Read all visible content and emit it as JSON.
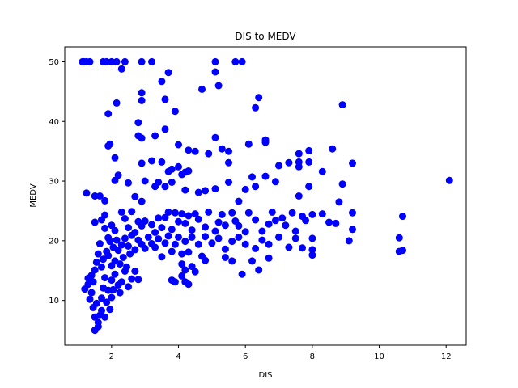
{
  "chart_data": {
    "type": "scatter",
    "title": "DIS to MEDV",
    "xlabel": "DIS",
    "ylabel": "MEDV",
    "xlim": [
      0.6,
      12.6
    ],
    "ylim": [
      2.5,
      52.5
    ],
    "xticks": [
      2,
      4,
      6,
      8,
      10,
      12
    ],
    "yticks": [
      10,
      20,
      30,
      40,
      50
    ],
    "grid": false,
    "marker_color": "#0000ff",
    "points": [
      [
        1.13,
        50
      ],
      [
        1.17,
        50
      ],
      [
        1.25,
        50
      ],
      [
        1.35,
        50
      ],
      [
        1.75,
        50
      ],
      [
        1.85,
        50
      ],
      [
        2.0,
        50
      ],
      [
        2.15,
        50
      ],
      [
        2.4,
        50
      ],
      [
        2.9,
        50
      ],
      [
        3.2,
        50
      ],
      [
        5.1,
        50
      ],
      [
        5.7,
        50
      ],
      [
        5.9,
        50
      ],
      [
        2.3,
        48.8
      ],
      [
        5.1,
        48.3
      ],
      [
        3.7,
        48.2
      ],
      [
        3.5,
        46.7
      ],
      [
        5.2,
        46
      ],
      [
        4.7,
        45.4
      ],
      [
        2.9,
        44.8
      ],
      [
        6.4,
        44
      ],
      [
        2.9,
        43.5
      ],
      [
        3.6,
        43.7
      ],
      [
        2.15,
        43.1
      ],
      [
        8.9,
        42.8
      ],
      [
        6.3,
        42.3
      ],
      [
        3.9,
        41.7
      ],
      [
        1.9,
        41.3
      ],
      [
        2.8,
        39.8
      ],
      [
        1.95,
        36.2
      ],
      [
        1.9,
        35.9
      ],
      [
        2.8,
        37.6
      ],
      [
        2.9,
        37.2
      ],
      [
        3.3,
        37.6
      ],
      [
        3.6,
        38.7
      ],
      [
        4.0,
        36.1
      ],
      [
        4.3,
        35.2
      ],
      [
        4.5,
        35
      ],
      [
        5.1,
        37.3
      ],
      [
        5.3,
        35.4
      ],
      [
        5.5,
        35
      ],
      [
        6.1,
        36.2
      ],
      [
        6.6,
        36.5
      ],
      [
        6.6,
        36.9
      ],
      [
        7.6,
        34.6
      ],
      [
        7.9,
        35.1
      ],
      [
        8.6,
        35.4
      ],
      [
        2.1,
        33.9
      ],
      [
        2.9,
        33
      ],
      [
        3.2,
        33.4
      ],
      [
        3.5,
        33.2
      ],
      [
        3.8,
        32
      ],
      [
        4.0,
        32.4
      ],
      [
        4.2,
        31.5
      ],
      [
        4.9,
        34.6
      ],
      [
        5.5,
        33.1
      ],
      [
        7.0,
        32.6
      ],
      [
        7.3,
        33.1
      ],
      [
        7.6,
        33.2
      ],
      [
        7.6,
        32.4
      ],
      [
        7.9,
        33.2
      ],
      [
        8.3,
        31.6
      ],
      [
        9.2,
        33
      ],
      [
        1.25,
        28
      ],
      [
        1.5,
        27.5
      ],
      [
        1.65,
        27.5
      ],
      [
        1.8,
        26.7
      ],
      [
        2.1,
        30.1
      ],
      [
        2.2,
        31
      ],
      [
        2.5,
        29.7
      ],
      [
        2.7,
        27.4
      ],
      [
        2.9,
        26.6
      ],
      [
        3.0,
        30
      ],
      [
        3.3,
        29.1
      ],
      [
        3.4,
        29.8
      ],
      [
        3.6,
        29.1
      ],
      [
        3.7,
        31.6
      ],
      [
        3.8,
        29.8
      ],
      [
        4.1,
        31.1
      ],
      [
        4.3,
        31.7
      ],
      [
        4.2,
        28.5
      ],
      [
        4.6,
        28.1
      ],
      [
        4.8,
        28.4
      ],
      [
        5.1,
        28.7
      ],
      [
        5.5,
        29.8
      ],
      [
        5.8,
        26.6
      ],
      [
        6.0,
        28.6
      ],
      [
        6.2,
        30.7
      ],
      [
        6.3,
        29.1
      ],
      [
        6.6,
        30.8
      ],
      [
        6.9,
        29.9
      ],
      [
        7.6,
        27.5
      ],
      [
        7.9,
        29.1
      ],
      [
        8.8,
        26.5
      ],
      [
        8.9,
        29.5
      ],
      [
        12.1,
        30.1
      ],
      [
        10.7,
        24.1
      ],
      [
        9.2,
        24.7
      ],
      [
        1.5,
        23.1
      ],
      [
        1.7,
        23.5
      ],
      [
        1.8,
        24.3
      ],
      [
        1.8,
        22.1
      ],
      [
        1.9,
        20.5
      ],
      [
        2.0,
        22.6
      ],
      [
        2.1,
        21.7
      ],
      [
        2.3,
        24.8
      ],
      [
        2.4,
        23.7
      ],
      [
        2.5,
        22.2
      ],
      [
        2.6,
        24.9
      ],
      [
        2.7,
        21.4
      ],
      [
        2.8,
        23.2
      ],
      [
        2.9,
        22.5
      ],
      [
        3.0,
        23.3
      ],
      [
        3.2,
        22.7
      ],
      [
        3.3,
        21.4
      ],
      [
        3.4,
        23.8
      ],
      [
        3.5,
        22.2
      ],
      [
        3.6,
        23.9
      ],
      [
        3.7,
        24.8
      ],
      [
        3.8,
        21.9
      ],
      [
        3.9,
        24.7
      ],
      [
        4.0,
        23.2
      ],
      [
        4.1,
        24.5
      ],
      [
        4.2,
        22.9
      ],
      [
        4.3,
        24.2
      ],
      [
        4.4,
        21.8
      ],
      [
        4.5,
        24.5
      ],
      [
        4.6,
        23.6
      ],
      [
        4.8,
        22.3
      ],
      [
        4.9,
        24.8
      ],
      [
        5.1,
        21.6
      ],
      [
        5.2,
        23.1
      ],
      [
        5.3,
        24.4
      ],
      [
        5.4,
        22.6
      ],
      [
        5.6,
        24.7
      ],
      [
        5.7,
        23.3
      ],
      [
        5.8,
        22.5
      ],
      [
        6.0,
        21.5
      ],
      [
        6.1,
        24.7
      ],
      [
        6.3,
        23.5
      ],
      [
        6.5,
        21.6
      ],
      [
        6.7,
        22.8
      ],
      [
        6.8,
        24.8
      ],
      [
        6.9,
        23.4
      ],
      [
        7.1,
        23.8
      ],
      [
        7.2,
        22.6
      ],
      [
        7.4,
        24.7
      ],
      [
        7.5,
        21.6
      ],
      [
        7.7,
        24.1
      ],
      [
        7.8,
        23.4
      ],
      [
        8.0,
        24.4
      ],
      [
        8.3,
        24.5
      ],
      [
        8.5,
        23.1
      ],
      [
        8.7,
        22.9
      ],
      [
        9.1,
        20
      ],
      [
        9.2,
        21.9
      ],
      [
        10.6,
        20.5
      ],
      [
        1.3,
        13.7
      ],
      [
        1.4,
        14.2
      ],
      [
        1.45,
        13.1
      ],
      [
        1.5,
        15.1
      ],
      [
        1.55,
        16.4
      ],
      [
        1.6,
        17.8
      ],
      [
        1.65,
        19.5
      ],
      [
        1.7,
        15.6
      ],
      [
        1.75,
        16.9
      ],
      [
        1.8,
        13.8
      ],
      [
        1.85,
        18.2
      ],
      [
        1.9,
        17.5
      ],
      [
        1.95,
        19.9
      ],
      [
        2.0,
        15.8
      ],
      [
        2.05,
        18.9
      ],
      [
        2.1,
        16.6
      ],
      [
        2.15,
        20.1
      ],
      [
        2.2,
        18.4
      ],
      [
        2.25,
        16.1
      ],
      [
        2.3,
        19.3
      ],
      [
        2.35,
        17.2
      ],
      [
        2.4,
        20.4
      ],
      [
        2.45,
        15.6
      ],
      [
        2.5,
        19.1
      ],
      [
        2.55,
        17.8
      ],
      [
        2.6,
        20.9
      ],
      [
        2.7,
        18.5
      ],
      [
        2.8,
        20.1
      ],
      [
        2.9,
        19.4
      ],
      [
        3.0,
        18.7
      ],
      [
        3.1,
        20.6
      ],
      [
        3.2,
        19.5
      ],
      [
        3.3,
        18.9
      ],
      [
        3.4,
        20.3
      ],
      [
        3.5,
        17.3
      ],
      [
        3.6,
        19.6
      ],
      [
        3.7,
        20.8
      ],
      [
        3.8,
        18.2
      ],
      [
        3.9,
        19.4
      ],
      [
        4.0,
        20.6
      ],
      [
        4.1,
        17.8
      ],
      [
        4.2,
        19.9
      ],
      [
        4.3,
        18.1
      ],
      [
        4.4,
        20.6
      ],
      [
        4.6,
        19.4
      ],
      [
        4.7,
        17.4
      ],
      [
        4.8,
        20.7
      ],
      [
        5.0,
        19.6
      ],
      [
        5.2,
        20.4
      ],
      [
        5.4,
        18.6
      ],
      [
        5.6,
        19.9
      ],
      [
        5.8,
        20.6
      ],
      [
        6.0,
        19.4
      ],
      [
        6.3,
        18.7
      ],
      [
        6.5,
        20.1
      ],
      [
        6.7,
        19.4
      ],
      [
        7.0,
        20.6
      ],
      [
        7.3,
        18.9
      ],
      [
        7.5,
        20.4
      ],
      [
        8.0,
        20.4
      ],
      [
        8.0,
        18.5
      ],
      [
        8.0,
        17.6
      ],
      [
        10.6,
        18.2
      ],
      [
        10.7,
        18.4
      ],
      [
        4.1,
        16.1
      ],
      [
        4.2,
        15.1
      ],
      [
        4.4,
        15.7
      ],
      [
        4.8,
        16.7
      ],
      [
        5.4,
        17.2
      ],
      [
        5.6,
        16.6
      ],
      [
        5.9,
        14.4
      ],
      [
        6.2,
        16.6
      ],
      [
        6.4,
        15.1
      ],
      [
        6.7,
        17.1
      ],
      [
        7.7,
        18.8
      ],
      [
        1.2,
        11.9
      ],
      [
        1.3,
        12.7
      ],
      [
        1.35,
        10.2
      ],
      [
        1.4,
        11.3
      ],
      [
        1.45,
        8.8
      ],
      [
        1.5,
        7.2
      ],
      [
        1.5,
        5.0
      ],
      [
        1.55,
        9.5
      ],
      [
        1.6,
        5.6
      ],
      [
        1.6,
        6.3
      ],
      [
        1.65,
        7.5
      ],
      [
        1.7,
        10.4
      ],
      [
        1.7,
        8.3
      ],
      [
        1.75,
        12.1
      ],
      [
        1.8,
        7.2
      ],
      [
        1.85,
        9.7
      ],
      [
        1.9,
        11.7
      ],
      [
        1.95,
        8.5
      ],
      [
        2.0,
        13.4
      ],
      [
        2.0,
        10.5
      ],
      [
        2.05,
        11.8
      ],
      [
        2.1,
        14.4
      ],
      [
        2.2,
        12.6
      ],
      [
        2.25,
        11.3
      ],
      [
        2.3,
        13.1
      ],
      [
        2.4,
        14.9
      ],
      [
        2.5,
        12.3
      ],
      [
        2.6,
        13.6
      ],
      [
        2.7,
        14.9
      ],
      [
        2.8,
        13.5
      ],
      [
        3.8,
        13.4
      ],
      [
        3.9,
        13.1
      ],
      [
        4.1,
        14.1
      ],
      [
        4.2,
        13.1
      ],
      [
        4.3,
        12.7
      ],
      [
        4.5,
        14.8
      ]
    ]
  }
}
